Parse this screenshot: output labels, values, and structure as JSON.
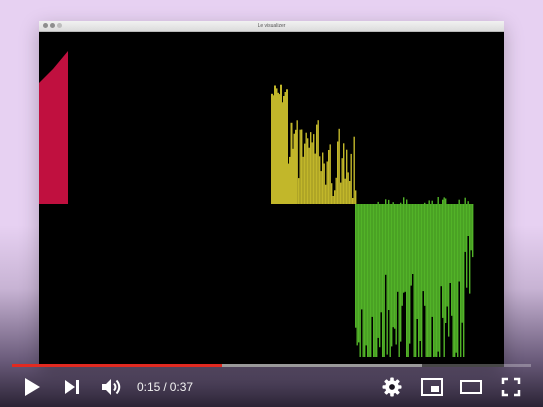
{
  "window": {
    "title": "Le visualizer"
  },
  "visualizer": {
    "bands": [
      {
        "name": "band-red",
        "color": "#c0103f"
      },
      {
        "name": "band-yellow",
        "color": "#c2b72a"
      },
      {
        "name": "band-green",
        "color": "#52b328"
      }
    ]
  },
  "player": {
    "current_time": "0:15",
    "separator": "/",
    "duration": "0:37",
    "progress_fraction": 0.405,
    "buffered_fraction": 0.79,
    "progress_color": "#e12a21"
  },
  "icons": {
    "play": "play-icon",
    "next": "next-icon",
    "volume": "volume-icon",
    "settings": "gear-icon",
    "miniplayer": "miniplayer-icon",
    "theater": "theater-mode-icon",
    "fullscreen": "fullscreen-icon"
  }
}
